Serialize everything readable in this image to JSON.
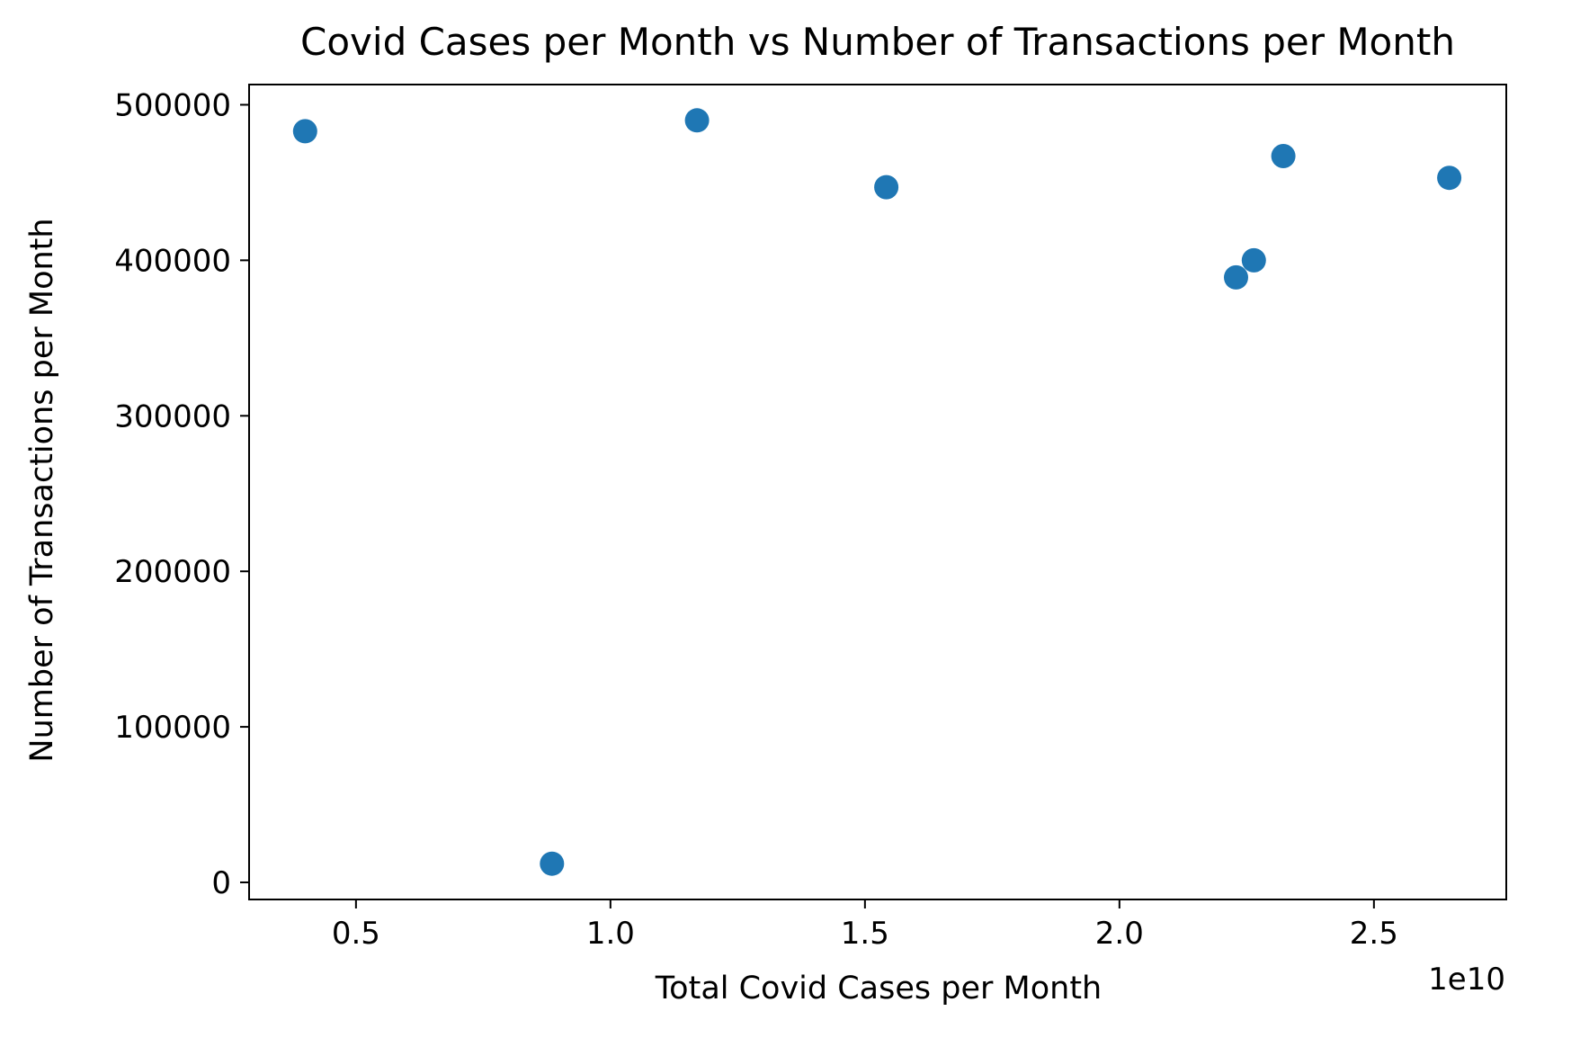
{
  "chart_data": {
    "type": "scatter",
    "title": "Covid Cases per Month vs Number of Transactions per Month",
    "xlabel": "Total Covid Cases per Month",
    "ylabel": "Number of Transactions per Month",
    "x_offset_label": "1e10",
    "xlim": [
      2900000000,
      27600000000
    ],
    "ylim": [
      -11000,
      513000
    ],
    "xticks": [
      {
        "value": 5000000000,
        "label": "0.5"
      },
      {
        "value": 10000000000,
        "label": "1.0"
      },
      {
        "value": 15000000000,
        "label": "1.5"
      },
      {
        "value": 20000000000,
        "label": "2.0"
      },
      {
        "value": 25000000000,
        "label": "2.5"
      }
    ],
    "yticks": [
      {
        "value": 0,
        "label": "0"
      },
      {
        "value": 100000,
        "label": "100000"
      },
      {
        "value": 200000,
        "label": "200000"
      },
      {
        "value": 300000,
        "label": "300000"
      },
      {
        "value": 400000,
        "label": "400000"
      },
      {
        "value": 500000,
        "label": "500000"
      }
    ],
    "grid": false,
    "marker_color": "#1f77b4",
    "points": [
      {
        "x": 4000000000,
        "y": 483000
      },
      {
        "x": 8850000000,
        "y": 12000
      },
      {
        "x": 11700000000,
        "y": 490000
      },
      {
        "x": 15420000000,
        "y": 447000
      },
      {
        "x": 22290000000,
        "y": 389000
      },
      {
        "x": 22640000000,
        "y": 400000
      },
      {
        "x": 23220000000,
        "y": 467000
      },
      {
        "x": 26480000000,
        "y": 453000
      }
    ]
  }
}
